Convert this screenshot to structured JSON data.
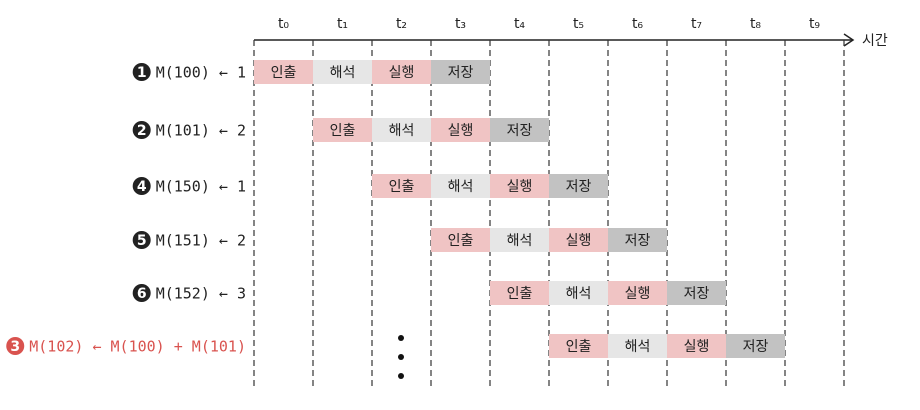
{
  "time_axis": {
    "ticks": [
      "t₀",
      "t₁",
      "t₂",
      "t₃",
      "t₄",
      "t₅",
      "t₆",
      "t₇",
      "t₈",
      "t₉"
    ],
    "label": "시간"
  },
  "rows": [
    {
      "number": "1",
      "label": "M(100) ← 1",
      "stages": [
        "인출",
        "해석",
        "실행",
        "저장"
      ]
    },
    {
      "number": "2",
      "label": "M(101) ← 2",
      "stages": [
        "인출",
        "해석",
        "실행",
        "저장"
      ]
    },
    {
      "number": "4",
      "label": "M(150) ← 1",
      "stages": [
        "인출",
        "해석",
        "실행",
        "저장"
      ]
    },
    {
      "number": "5",
      "label": "M(151) ← 2",
      "stages": [
        "인출",
        "해석",
        "실행",
        "저장"
      ]
    },
    {
      "number": "6",
      "label": "M(152) ← 3",
      "stages": [
        "인출",
        "해석",
        "실행",
        "저장"
      ]
    },
    {
      "number": "3",
      "label": "M(102) ← M(100) + M(101)",
      "stages": [
        "인출",
        "해석",
        "실행",
        "저장"
      ]
    }
  ]
}
